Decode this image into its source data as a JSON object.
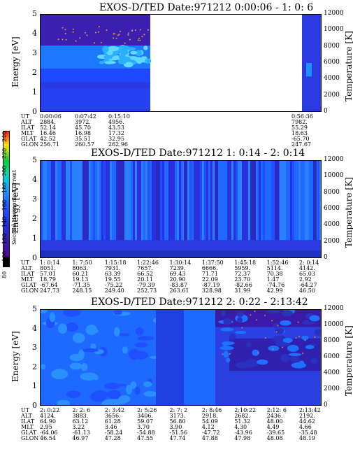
{
  "chart_data": [
    {
      "type": "heatmap",
      "title": "EXOS-D/TED   Date:971212  0:00:06 - 1: 0: 6",
      "ylabel": "Energy [eV]",
      "y2label": "Temperature [K]",
      "ylim": [
        0,
        5
      ],
      "y2lim": [
        0,
        12000
      ],
      "yticks": [
        "0",
        "1",
        "2",
        "3",
        "4",
        "5"
      ],
      "y2ticks": [
        "0",
        "2000",
        "4000",
        "6000",
        "8000",
        "10000",
        "12000"
      ],
      "data_coverage": "segments at 0:00:06-0:15:10 and 0:56:36-1:00:06; gap between",
      "ephemeris": {
        "rows": [
          "UT",
          "ALT",
          "ILAT",
          "MLT",
          "GLAT",
          "GLON"
        ],
        "columns": [
          {
            "UT": "0:00:06",
            "ALT": "2884.",
            "ILAT": "52.14",
            "MLT": "16.46",
            "GLAT": "42.52",
            "GLON": "256.71"
          },
          {
            "UT": "0:07:42",
            "ALT": "3972.",
            "ILAT": "45.70",
            "MLT": "16.98",
            "GLAT": "35.51",
            "GLON": "260.57"
          },
          {
            "UT": "0:15:10",
            "ALT": "4956.",
            "ILAT": "43.53",
            "MLT": "17.32",
            "GLAT": "32.95",
            "GLON": "262.96"
          },
          {
            "UT": "0:56:36",
            "ALT": "7982.",
            "ILAT": "55.29",
            "MLT": "18.63",
            "GLAT": "-65.70",
            "GLON": "247.67"
          }
        ]
      }
    },
    {
      "type": "heatmap",
      "title": "EXOS-D/TED   Date:971212  1: 0:14 - 2: 0:14",
      "ylabel": "Energy [eV]",
      "y2label": "Temperature [K]",
      "ylim": [
        0,
        5
      ],
      "y2lim": [
        0,
        12000
      ],
      "yticks": [
        "0",
        "1",
        "2",
        "3",
        "4",
        "5"
      ],
      "y2ticks": [
        "0",
        "2000",
        "4000",
        "6000",
        "8000",
        "10000",
        "12000"
      ],
      "ephemeris": {
        "rows": [
          "UT",
          "ALT",
          "ILAT",
          "MLT",
          "GLAT",
          "GLON"
        ],
        "columns": [
          {
            "UT": "1: 0:14",
            "ALT": "8051.",
            "ILAT": "57.01",
            "MLT": "18.79",
            "GLAT": "-67.64",
            "GLON": "247.73"
          },
          {
            "UT": "1: 7:50",
            "ALT": "8063.",
            "ILAT": "60.21",
            "MLT": "19.13",
            "GLAT": "-71.35",
            "GLON": "248.15"
          },
          {
            "UT": "1:15:18",
            "ALT": "7931.",
            "ILAT": "63.39",
            "MLT": "19.55",
            "GLAT": "-75.22",
            "GLON": "249.40"
          },
          {
            "UT": "1:22:46",
            "ALT": "7657.",
            "ILAT": "66.52",
            "MLT": "20.11",
            "GLAT": "-79.39",
            "GLON": "252.73"
          },
          {
            "UT": "1:30:14",
            "ALT": "7239.",
            "ILAT": "69.43",
            "MLT": "20.90",
            "GLAT": "-83.87",
            "GLON": "263.61"
          },
          {
            "UT": "1:37:50",
            "ALT": "6666.",
            "ILAT": "71.71",
            "MLT": "22.09",
            "GLAT": "-87.19",
            "GLON": "328.98"
          },
          {
            "UT": "1:45:18",
            "ALT": "5959.",
            "ILAT": "72.37",
            "MLT": "23.70",
            "GLAT": "-82.66",
            "GLON": "31.99"
          },
          {
            "UT": "1:52:46",
            "ALT": "5114.",
            "ILAT": "70.38",
            "MLT": "1.47",
            "GLAT": "-74.76",
            "GLON": "42.99"
          },
          {
            "UT": "2: 0:14",
            "ALT": "4142.",
            "ILAT": "65.03",
            "MLT": "2.92",
            "GLAT": "-64.27",
            "GLON": "46.50"
          }
        ]
      }
    },
    {
      "type": "heatmap",
      "title": "EXOS-D/TED   Date:971212  2: 0:22 - 2:13:42",
      "ylabel": "Energy [eV]",
      "y2label": "Temperature [K]",
      "ylim": [
        0,
        5
      ],
      "y2lim": [
        0,
        12000
      ],
      "yticks": [
        "0",
        "1",
        "2",
        "3",
        "4",
        "5"
      ],
      "y2ticks": [
        "0",
        "2000",
        "4000",
        "6000",
        "8000",
        "10000",
        "12000"
      ],
      "ephemeris": {
        "rows": [
          "UT",
          "ALT",
          "ILAT",
          "MLT",
          "GLAT",
          "GLON"
        ],
        "columns": [
          {
            "UT": "2: 0:22",
            "ALT": "4124.",
            "ILAT": "64.90",
            "MLT": "2.95",
            "GLAT": "-64.06",
            "GLON": "46.54"
          },
          {
            "UT": "2: 2: 6",
            "ALT": "3883.",
            "ILAT": "63.12",
            "MLT": "3.22",
            "GLAT": "-61.13",
            "GLON": "46.97"
          },
          {
            "UT": "2: 3:42",
            "ALT": "3656.",
            "ILAT": "61.28",
            "MLT": "3.46",
            "GLAT": "-58.24",
            "GLON": "47.28"
          },
          {
            "UT": "2: 5:26",
            "ALT": "3406.",
            "ILAT": "59.07",
            "MLT": "3.70",
            "GLAT": "-54.88",
            "GLON": "47.55"
          },
          {
            "UT": "2: 7: 2",
            "ALT": "3173.",
            "ILAT": "56.80",
            "MLT": "3.90",
            "GLAT": "-51.56",
            "GLON": "47.74"
          },
          {
            "UT": "2: 8:46",
            "ALT": "2918.",
            "ILAT": "54.09",
            "MLT": "4.12",
            "GLAT": "-47.72",
            "GLON": "47.88"
          },
          {
            "UT": "2:10:22",
            "ALT": "2682.",
            "ILAT": "51.32",
            "MLT": "4.30",
            "GLAT": "-43.96",
            "GLON": "47.98"
          },
          {
            "UT": "2:12: 6",
            "ALT": "2436.",
            "ILAT": "48.00",
            "MLT": "4.49",
            "GLAT": "-39.65",
            "GLON": "48.08"
          },
          {
            "UT": "2:13:42",
            "ALT": "2192.",
            "ILAT": "44.62",
            "MLT": "4.66",
            "GLAT": "-35.48",
            "GLON": "48.19"
          }
        ]
      }
    }
  ],
  "colorbar": {
    "label": "Second Harmonic Current",
    "ticks": [
      "80",
      "100",
      "120",
      "140",
      "160",
      "180",
      "200",
      "220",
      "240"
    ],
    "colors": [
      "#000000",
      "#6a0dad",
      "#2a1fd0",
      "#1e50ff",
      "#1e90ff",
      "#00d8ff",
      "#00e070",
      "#ffee00",
      "#ff1a1a"
    ]
  }
}
